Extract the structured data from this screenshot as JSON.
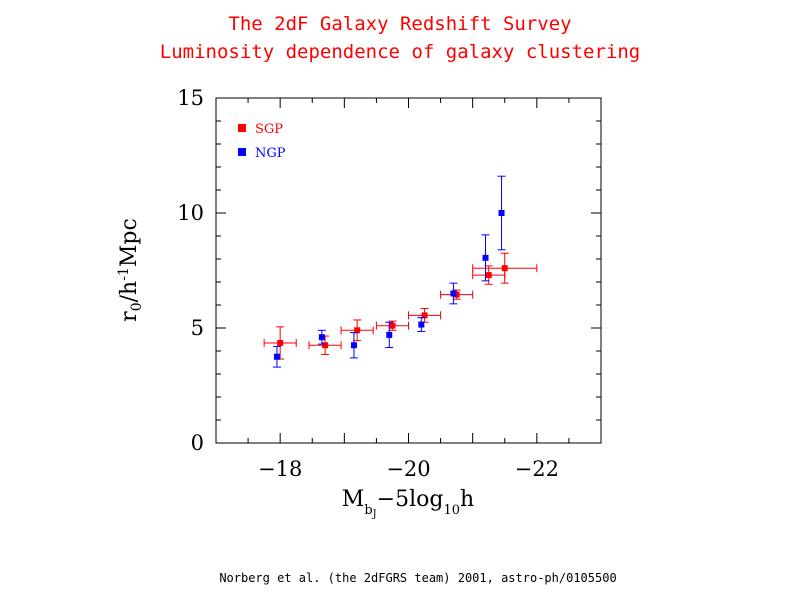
{
  "title": "The 2dF Galaxy Redshift Survey",
  "subtitle": "Luminosity dependence of galaxy clustering",
  "credit": "Norberg et al. (the 2dFGRS team) 2001, astro-ph/0105500",
  "colors": {
    "sgp": "#ff0000",
    "ngp": "#0000ff",
    "title": "#ff0000"
  },
  "chart_data": {
    "type": "scatter",
    "title": "The 2dF Galaxy Redshift Survey",
    "subtitle": "Luminosity dependence of galaxy clustering",
    "xlabel": "M_bJ − 5log10h",
    "ylabel": "r0/h⁻¹Mpc",
    "xlim": [
      -17,
      -23
    ],
    "ylim": [
      0,
      15
    ],
    "x_ticks": [
      -18,
      -20,
      -22
    ],
    "y_ticks": [
      0,
      5,
      10,
      15
    ],
    "legend_position": "top-left",
    "series": [
      {
        "name": "SGP",
        "color": "#ff0000",
        "points": [
          {
            "x": -18.0,
            "y": 4.35,
            "xerr": [
              0.25,
              0.25
            ],
            "yerr": [
              0.7,
              0.7
            ]
          },
          {
            "x": -18.7,
            "y": 4.25,
            "xerr": [
              0.25,
              0.25
            ],
            "yerr": [
              0.4,
              0.4
            ]
          },
          {
            "x": -19.2,
            "y": 4.9,
            "xerr": [
              0.25,
              0.25
            ],
            "yerr": [
              0.45,
              0.45
            ]
          },
          {
            "x": -19.75,
            "y": 5.1,
            "xerr": [
              0.25,
              0.25
            ],
            "yerr": [
              0.2,
              0.2
            ]
          },
          {
            "x": -20.25,
            "y": 5.55,
            "xerr": [
              0.25,
              0.25
            ],
            "yerr": [
              0.3,
              0.3
            ]
          },
          {
            "x": -20.75,
            "y": 6.45,
            "xerr": [
              0.25,
              0.25
            ],
            "yerr": [
              0.2,
              0.2
            ]
          },
          {
            "x": -21.25,
            "y": 7.3,
            "xerr": [
              0.25,
              0.25
            ],
            "yerr": [
              0.4,
              0.4
            ]
          },
          {
            "x": -21.5,
            "y": 7.6,
            "xerr": [
              0.5,
              0.5
            ],
            "yerr": [
              0.65,
              0.65
            ]
          }
        ]
      },
      {
        "name": "NGP",
        "color": "#0000ff",
        "points": [
          {
            "x": -17.95,
            "y": 3.75,
            "yerr": [
              0.45,
              0.45
            ]
          },
          {
            "x": -18.65,
            "y": 4.6,
            "yerr": [
              0.3,
              0.3
            ]
          },
          {
            "x": -19.15,
            "y": 4.25,
            "yerr": [
              0.55,
              0.55
            ]
          },
          {
            "x": -19.7,
            "y": 4.7,
            "yerr": [
              0.55,
              0.55
            ]
          },
          {
            "x": -20.2,
            "y": 5.15,
            "yerr": [
              0.3,
              0.3
            ]
          },
          {
            "x": -20.7,
            "y": 6.5,
            "yerr": [
              0.45,
              0.45
            ]
          },
          {
            "x": -21.2,
            "y": 8.05,
            "yerr": [
              1.0,
              1.0
            ]
          },
          {
            "x": -21.45,
            "y": 10.0,
            "yerr": [
              1.6,
              1.6
            ]
          }
        ]
      }
    ]
  }
}
